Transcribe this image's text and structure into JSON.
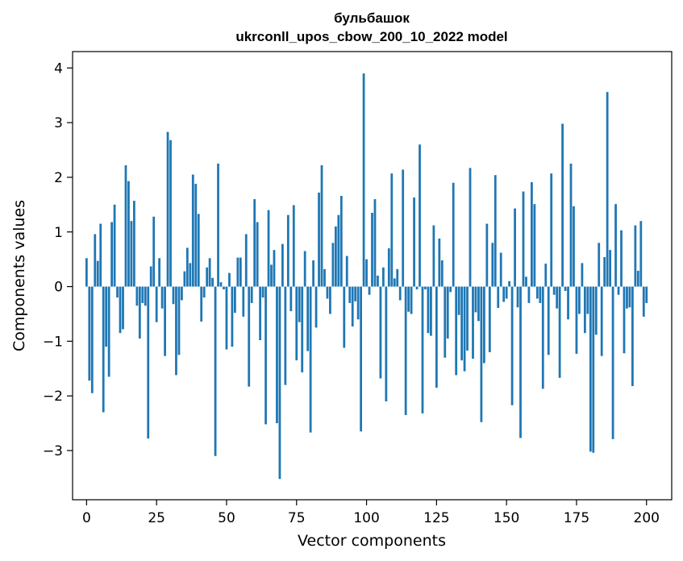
{
  "chart_data": {
    "type": "bar",
    "title": "бульбашок",
    "subtitle": "ukrconll_upos_cbow_200_10_2022 model",
    "xlabel": "Vector components",
    "ylabel": "Components values",
    "xlim": [
      -5,
      209
    ],
    "ylim": [
      -3.9,
      4.3
    ],
    "xticks": [
      0,
      25,
      50,
      75,
      100,
      125,
      150,
      175,
      200
    ],
    "xtick_labels": [
      "0",
      "25",
      "50",
      "75",
      "100",
      "125",
      "150",
      "175",
      "200"
    ],
    "yticks": [
      -3,
      -2,
      -1,
      0,
      1,
      2,
      3,
      4
    ],
    "ytick_labels": [
      "−3",
      "−2",
      "−1",
      "0",
      "1",
      "2",
      "3",
      "4"
    ],
    "grid": false,
    "bar_color": "#1f77b4",
    "series": [
      {
        "values": [
          0.52,
          -1.72,
          -1.95,
          0.96,
          0.47,
          1.15,
          -2.3,
          -1.1,
          -1.65,
          1.18,
          1.5,
          -0.2,
          -0.85,
          -0.78,
          2.22,
          1.93,
          1.2,
          1.57,
          -0.35,
          -0.95,
          -0.3,
          -0.35,
          -2.78,
          0.37,
          1.28,
          -0.65,
          0.52,
          -0.4,
          -1.27,
          2.83,
          2.68,
          -0.32,
          -1.62,
          -1.25,
          -0.25,
          0.28,
          0.71,
          0.43,
          2.05,
          1.88,
          1.33,
          -0.64,
          -0.2,
          0.35,
          0.52,
          0.16,
          -3.1,
          2.25,
          0.08,
          -0.05,
          -1.15,
          0.25,
          -1.1,
          -0.48,
          0.53,
          0.53,
          -0.55,
          0.96,
          -1.83,
          -0.3,
          1.6,
          1.18,
          -0.98,
          -0.2,
          -2.52,
          1.4,
          0.4,
          0.67,
          -2.5,
          -3.52,
          0.78,
          -1.8,
          1.31,
          -0.45,
          1.49,
          -1.35,
          -0.65,
          -1.57,
          0.65,
          -1.18,
          -2.67,
          0.48,
          -0.75,
          1.72,
          2.22,
          0.32,
          -0.22,
          -0.5,
          0.8,
          1.1,
          1.31,
          1.66,
          -1.12,
          0.56,
          -0.3,
          -0.73,
          -0.27,
          -0.6,
          -2.65,
          3.9,
          0.5,
          -0.15,
          1.35,
          1.6,
          0.2,
          -1.68,
          0.35,
          -2.1,
          0.7,
          2.07,
          0.15,
          0.32,
          -0.25,
          2.14,
          -2.35,
          -0.46,
          -0.5,
          1.63,
          -0.05,
          2.6,
          -2.32,
          -0.05,
          -0.85,
          -0.9,
          1.12,
          -1.85,
          0.88,
          0.48,
          -1.3,
          -0.95,
          -0.1,
          1.9,
          -1.62,
          -0.52,
          -1.35,
          -1.55,
          -1.17,
          2.17,
          -1.32,
          -0.47,
          -0.63,
          -2.48,
          -1.4,
          1.15,
          -1.2,
          0.8,
          2.04,
          -0.39,
          0.62,
          -0.28,
          -0.22,
          0.1,
          -2.17,
          1.43,
          -0.38,
          -2.77,
          1.74,
          0.18,
          -0.3,
          1.91,
          1.51,
          -0.22,
          -0.3,
          -1.87,
          0.42,
          -1.25,
          2.07,
          -0.15,
          -0.4,
          -1.67,
          2.98,
          -0.08,
          -0.6,
          2.25,
          1.47,
          -1.23,
          -0.5,
          0.43,
          -0.85,
          -0.5,
          -3.02,
          -3.04,
          -0.88,
          0.8,
          -1.27,
          0.54,
          3.56,
          0.67,
          -2.79,
          1.51,
          -0.15,
          1.03,
          -1.22,
          -0.4,
          -0.38,
          -1.82,
          1.12,
          0.29,
          1.2,
          -0.55,
          -0.3
        ]
      }
    ]
  }
}
